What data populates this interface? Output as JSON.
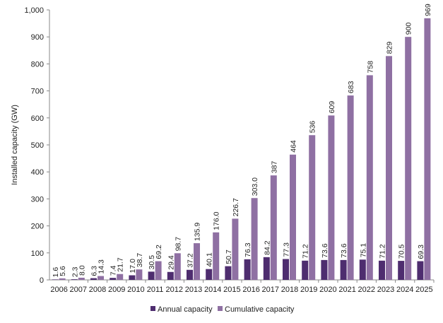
{
  "chart_data": {
    "type": "bar",
    "title": "",
    "xlabel": "",
    "ylabel": "Installed capacity (GW)",
    "ylim": [
      0,
      1000
    ],
    "yticks": [
      "0",
      "100",
      "200",
      "300",
      "400",
      "500",
      "600",
      "700",
      "800",
      "900",
      "1,000"
    ],
    "categories": [
      "2006",
      "2007",
      "2008",
      "2009",
      "2010",
      "2011",
      "2012",
      "2013",
      "2014",
      "2015",
      "2016",
      "2017",
      "2018",
      "2019",
      "2020",
      "2021",
      "2022",
      "2023",
      "2024",
      "2025"
    ],
    "series": [
      {
        "name": "Annual capacity",
        "color": "#4e2d6f",
        "values": [
          1.6,
          2.3,
          6.3,
          7.4,
          17.0,
          30.5,
          29.4,
          37.2,
          40.1,
          50.7,
          76.3,
          84.2,
          77.3,
          71.2,
          73.6,
          73.6,
          75.1,
          71.2,
          70.5,
          69.3
        ],
        "labels": [
          "1.6",
          "2.3",
          "6.3",
          "7.4",
          "17.0",
          "30.5",
          "29.4",
          "37.2",
          "40.1",
          "50.7",
          "76.3",
          "84.2",
          "77.3",
          "71.2",
          "73.6",
          "73.6",
          "75.1",
          "71.2",
          "70.5",
          "69.3"
        ]
      },
      {
        "name": "Cumulative capacity",
        "color": "#8f70a3",
        "values": [
          5.6,
          8.0,
          14.3,
          21.7,
          38.7,
          69.2,
          98.7,
          135.9,
          176.0,
          226.7,
          303.0,
          387,
          464,
          536,
          609,
          683,
          758,
          829,
          900,
          969
        ],
        "labels": [
          "5.6",
          "8.0",
          "14.3",
          "21.7",
          "38.7",
          "69.2",
          "98.7",
          "135.9",
          "176.0",
          "226.7",
          "303.0",
          "387",
          "464",
          "536",
          "609",
          "683",
          "758",
          "829",
          "900",
          "969"
        ]
      }
    ],
    "legend": "bottom",
    "grid": false
  }
}
